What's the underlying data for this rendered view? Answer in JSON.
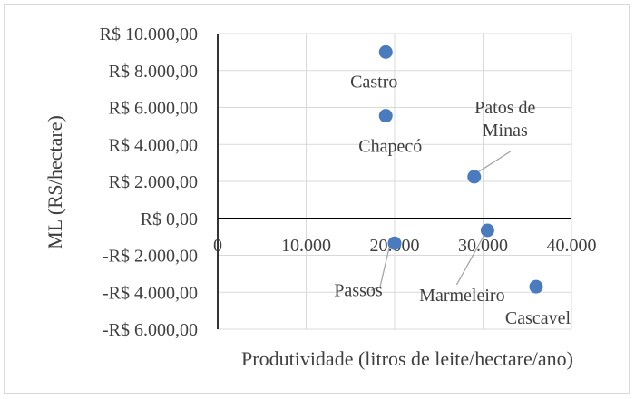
{
  "chart_data": {
    "type": "scatter",
    "xlabel": "Produtividade (litros de leite/hectare/ano)",
    "ylabel": "ML  (R$/hectare)",
    "xlim": [
      0,
      40000
    ],
    "ylim": [
      -6000,
      10000
    ],
    "grid": {
      "horizontal": true,
      "vertical": true
    },
    "point_color": "#4a7bbf",
    "x_tick_labels": [
      "0",
      "10.000",
      "20.000",
      "30.000",
      "40.000"
    ],
    "y_tick_labels": [
      "-R$ 6.000,00",
      "-R$ 4.000,00",
      "-R$ 2.000,00",
      "R$ 0,00",
      "R$ 2.000,00",
      "R$ 4.000,00",
      "R$ 6.000,00",
      "R$ 8.000,00",
      "R$ 10.000,00"
    ],
    "x_ticks": [
      0,
      10000,
      20000,
      30000,
      40000
    ],
    "y_ticks": [
      -6000,
      -4000,
      -2000,
      0,
      2000,
      4000,
      6000,
      8000,
      10000
    ],
    "points": [
      {
        "label": "Castro",
        "x": 19000,
        "y": 9000
      },
      {
        "label": "Chapecó",
        "x": 19000,
        "y": 5550
      },
      {
        "label": "Patos de Minas",
        "x": 29000,
        "y": 2250
      },
      {
        "label": "Passos",
        "x": 20000,
        "y": -1350
      },
      {
        "label": "Marmeleiro",
        "x": 30500,
        "y": -650
      },
      {
        "label": "Cascavel",
        "x": 36000,
        "y": -3700
      }
    ]
  }
}
